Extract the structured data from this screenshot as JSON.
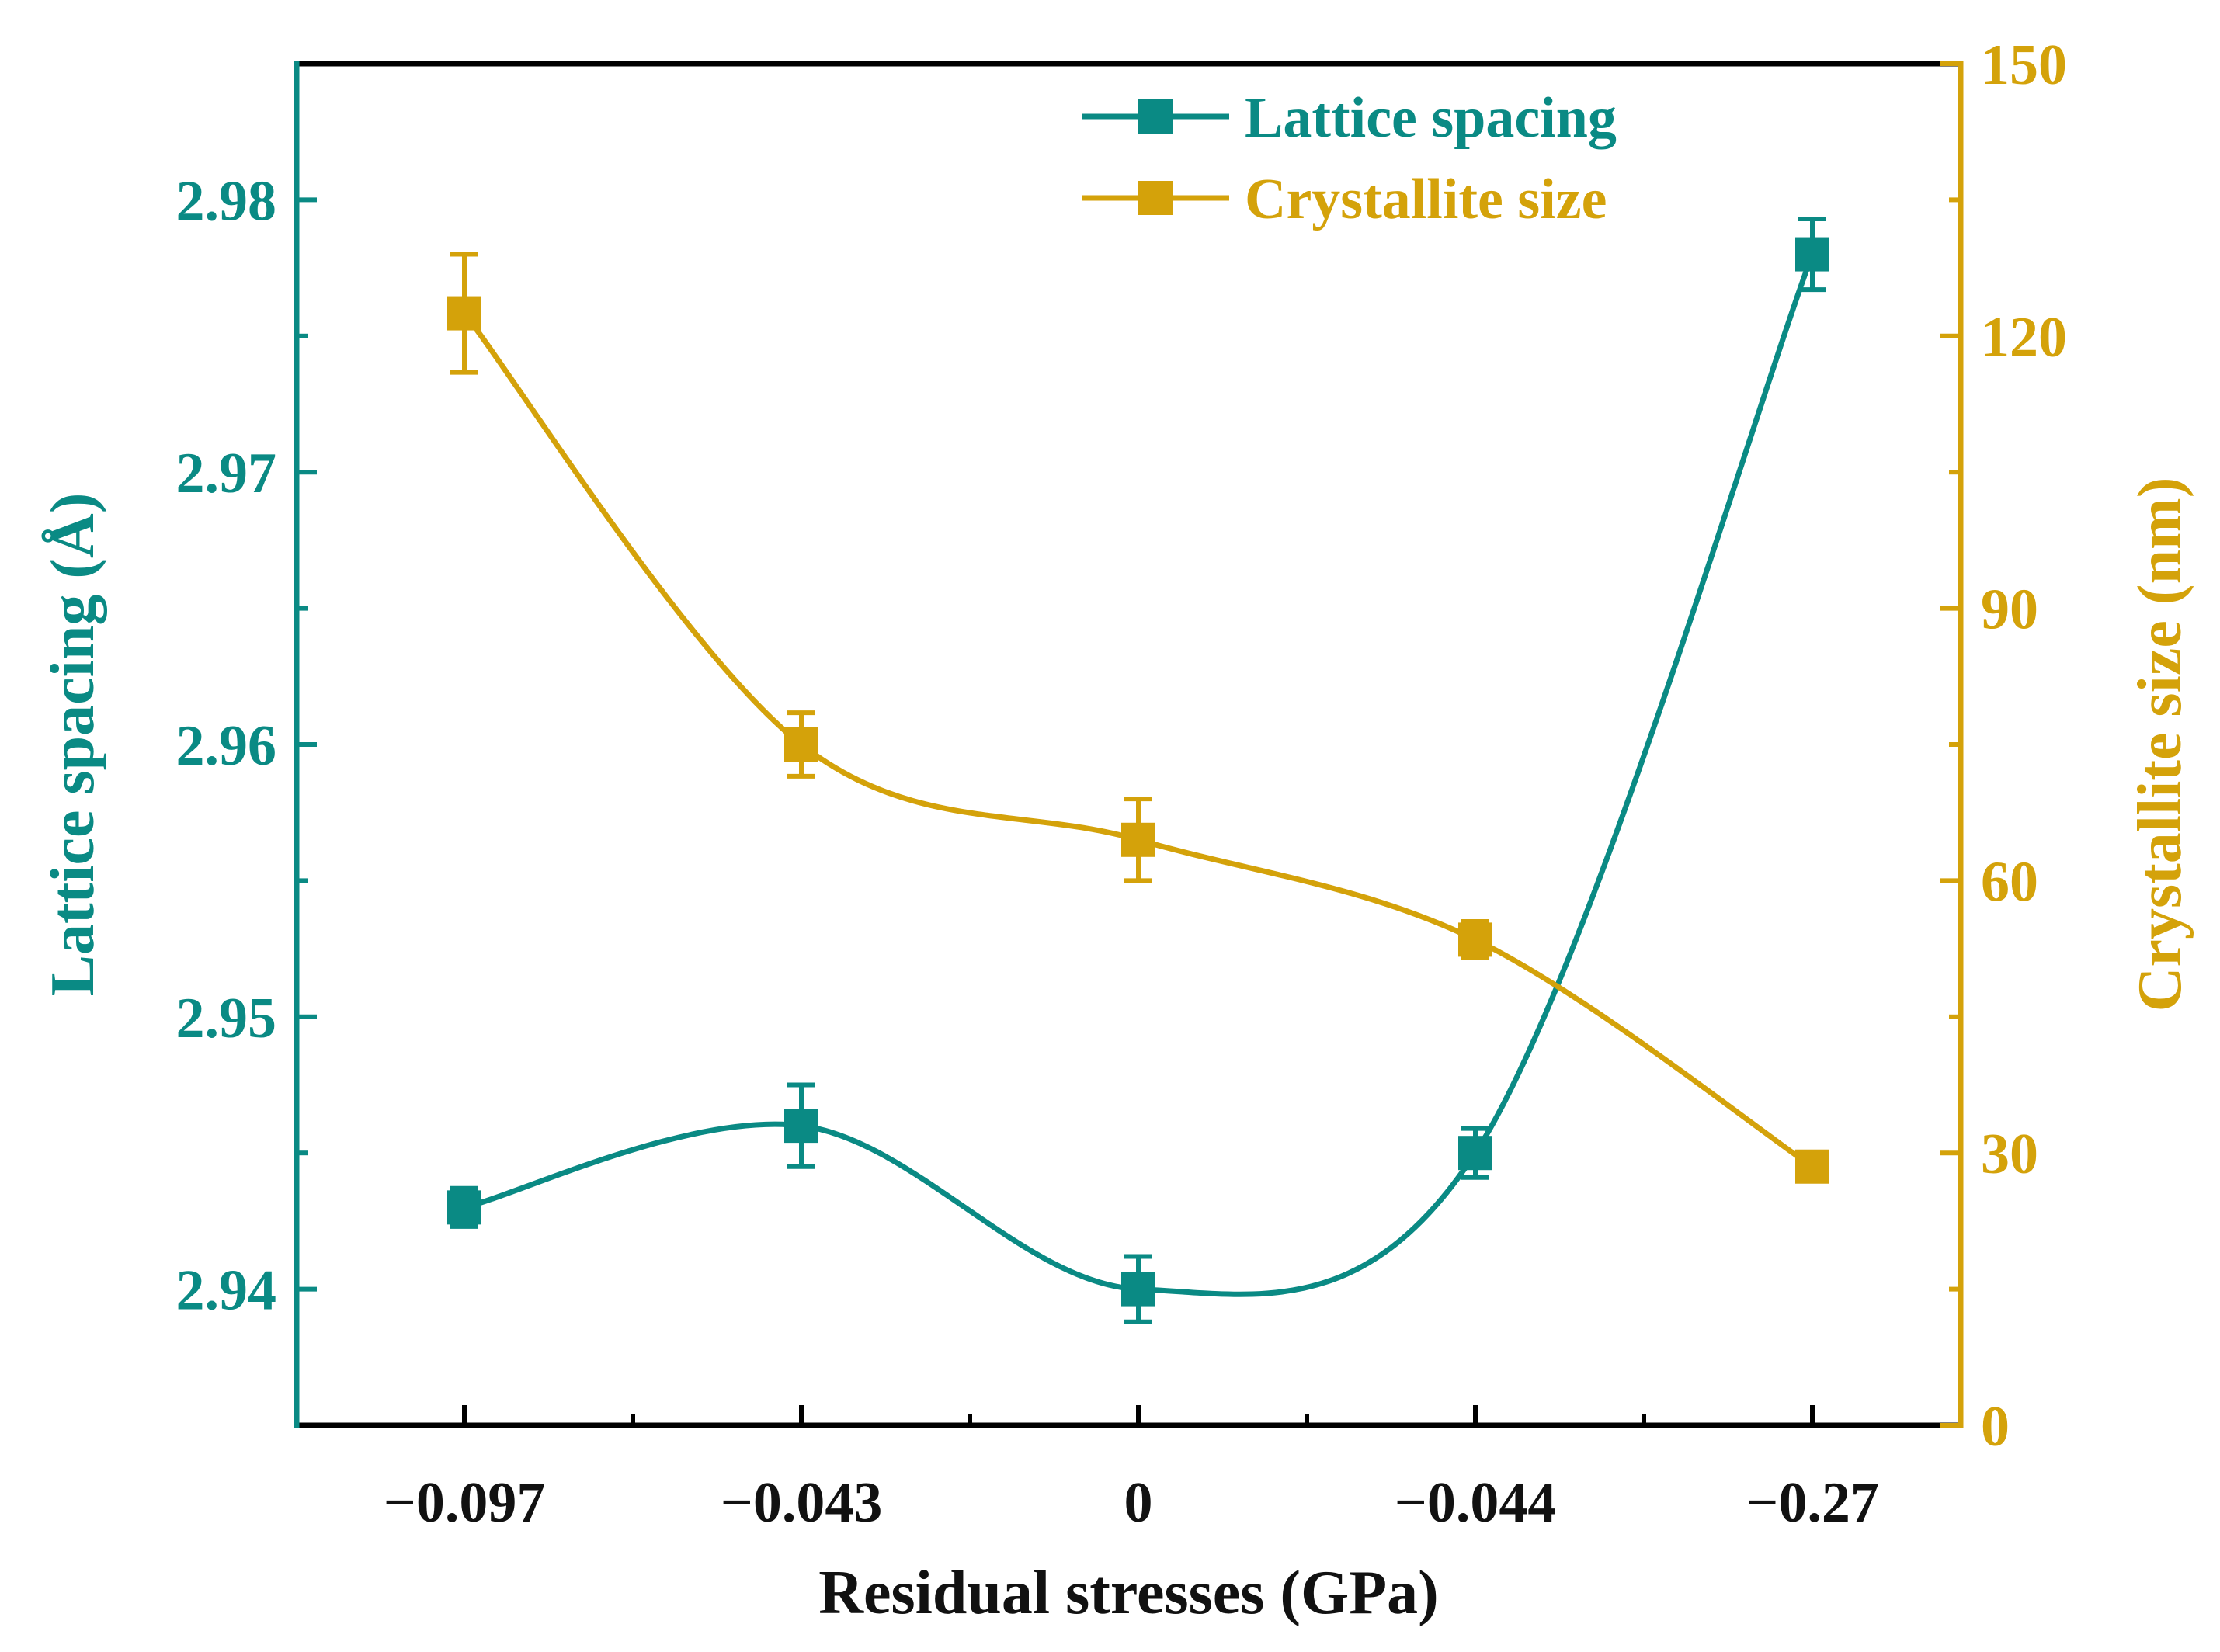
{
  "chart_data": {
    "type": "line",
    "title": "",
    "xlabel": "Residual stresses (GPa)",
    "categories": [
      "−0.097",
      "−0.043",
      "0",
      "−0.044",
      "−0.27"
    ],
    "left_axis": {
      "label": "Lattice spacing (Å)",
      "ylim": [
        2.935,
        2.985
      ],
      "ticks": [
        "2.94",
        "2.95",
        "2.96",
        "2.97",
        "2.98"
      ],
      "tick_values": [
        2.94,
        2.95,
        2.96,
        2.97,
        2.98
      ],
      "minor_tick_values": [
        2.945,
        2.955,
        2.965,
        2.975
      ],
      "color": "#0a8a84"
    },
    "right_axis": {
      "label": "Crystallite size (nm)",
      "ylim": [
        0,
        150
      ],
      "ticks": [
        "0",
        "30",
        "60",
        "90",
        "120",
        "150"
      ],
      "tick_values": [
        0,
        30,
        60,
        90,
        120,
        150
      ],
      "minor_tick_values": [
        15,
        45,
        75,
        105,
        135
      ],
      "color": "#d4a20a"
    },
    "series": [
      {
        "name": "Lattice spacing",
        "axis": "left",
        "color": "#0a8a84",
        "values": [
          2.943,
          2.946,
          2.94,
          2.945,
          2.978
        ],
        "errors": [
          0.0007,
          0.0015,
          0.0012,
          0.0009,
          0.0013
        ]
      },
      {
        "name": "Crystallite size",
        "axis": "right",
        "color": "#d4a20a",
        "values": [
          122.5,
          75,
          64.5,
          53.5,
          28.5
        ],
        "errors": [
          6.5,
          3.5,
          4.5,
          2,
          1.5
        ]
      }
    ],
    "legend_position": "top-center"
  }
}
